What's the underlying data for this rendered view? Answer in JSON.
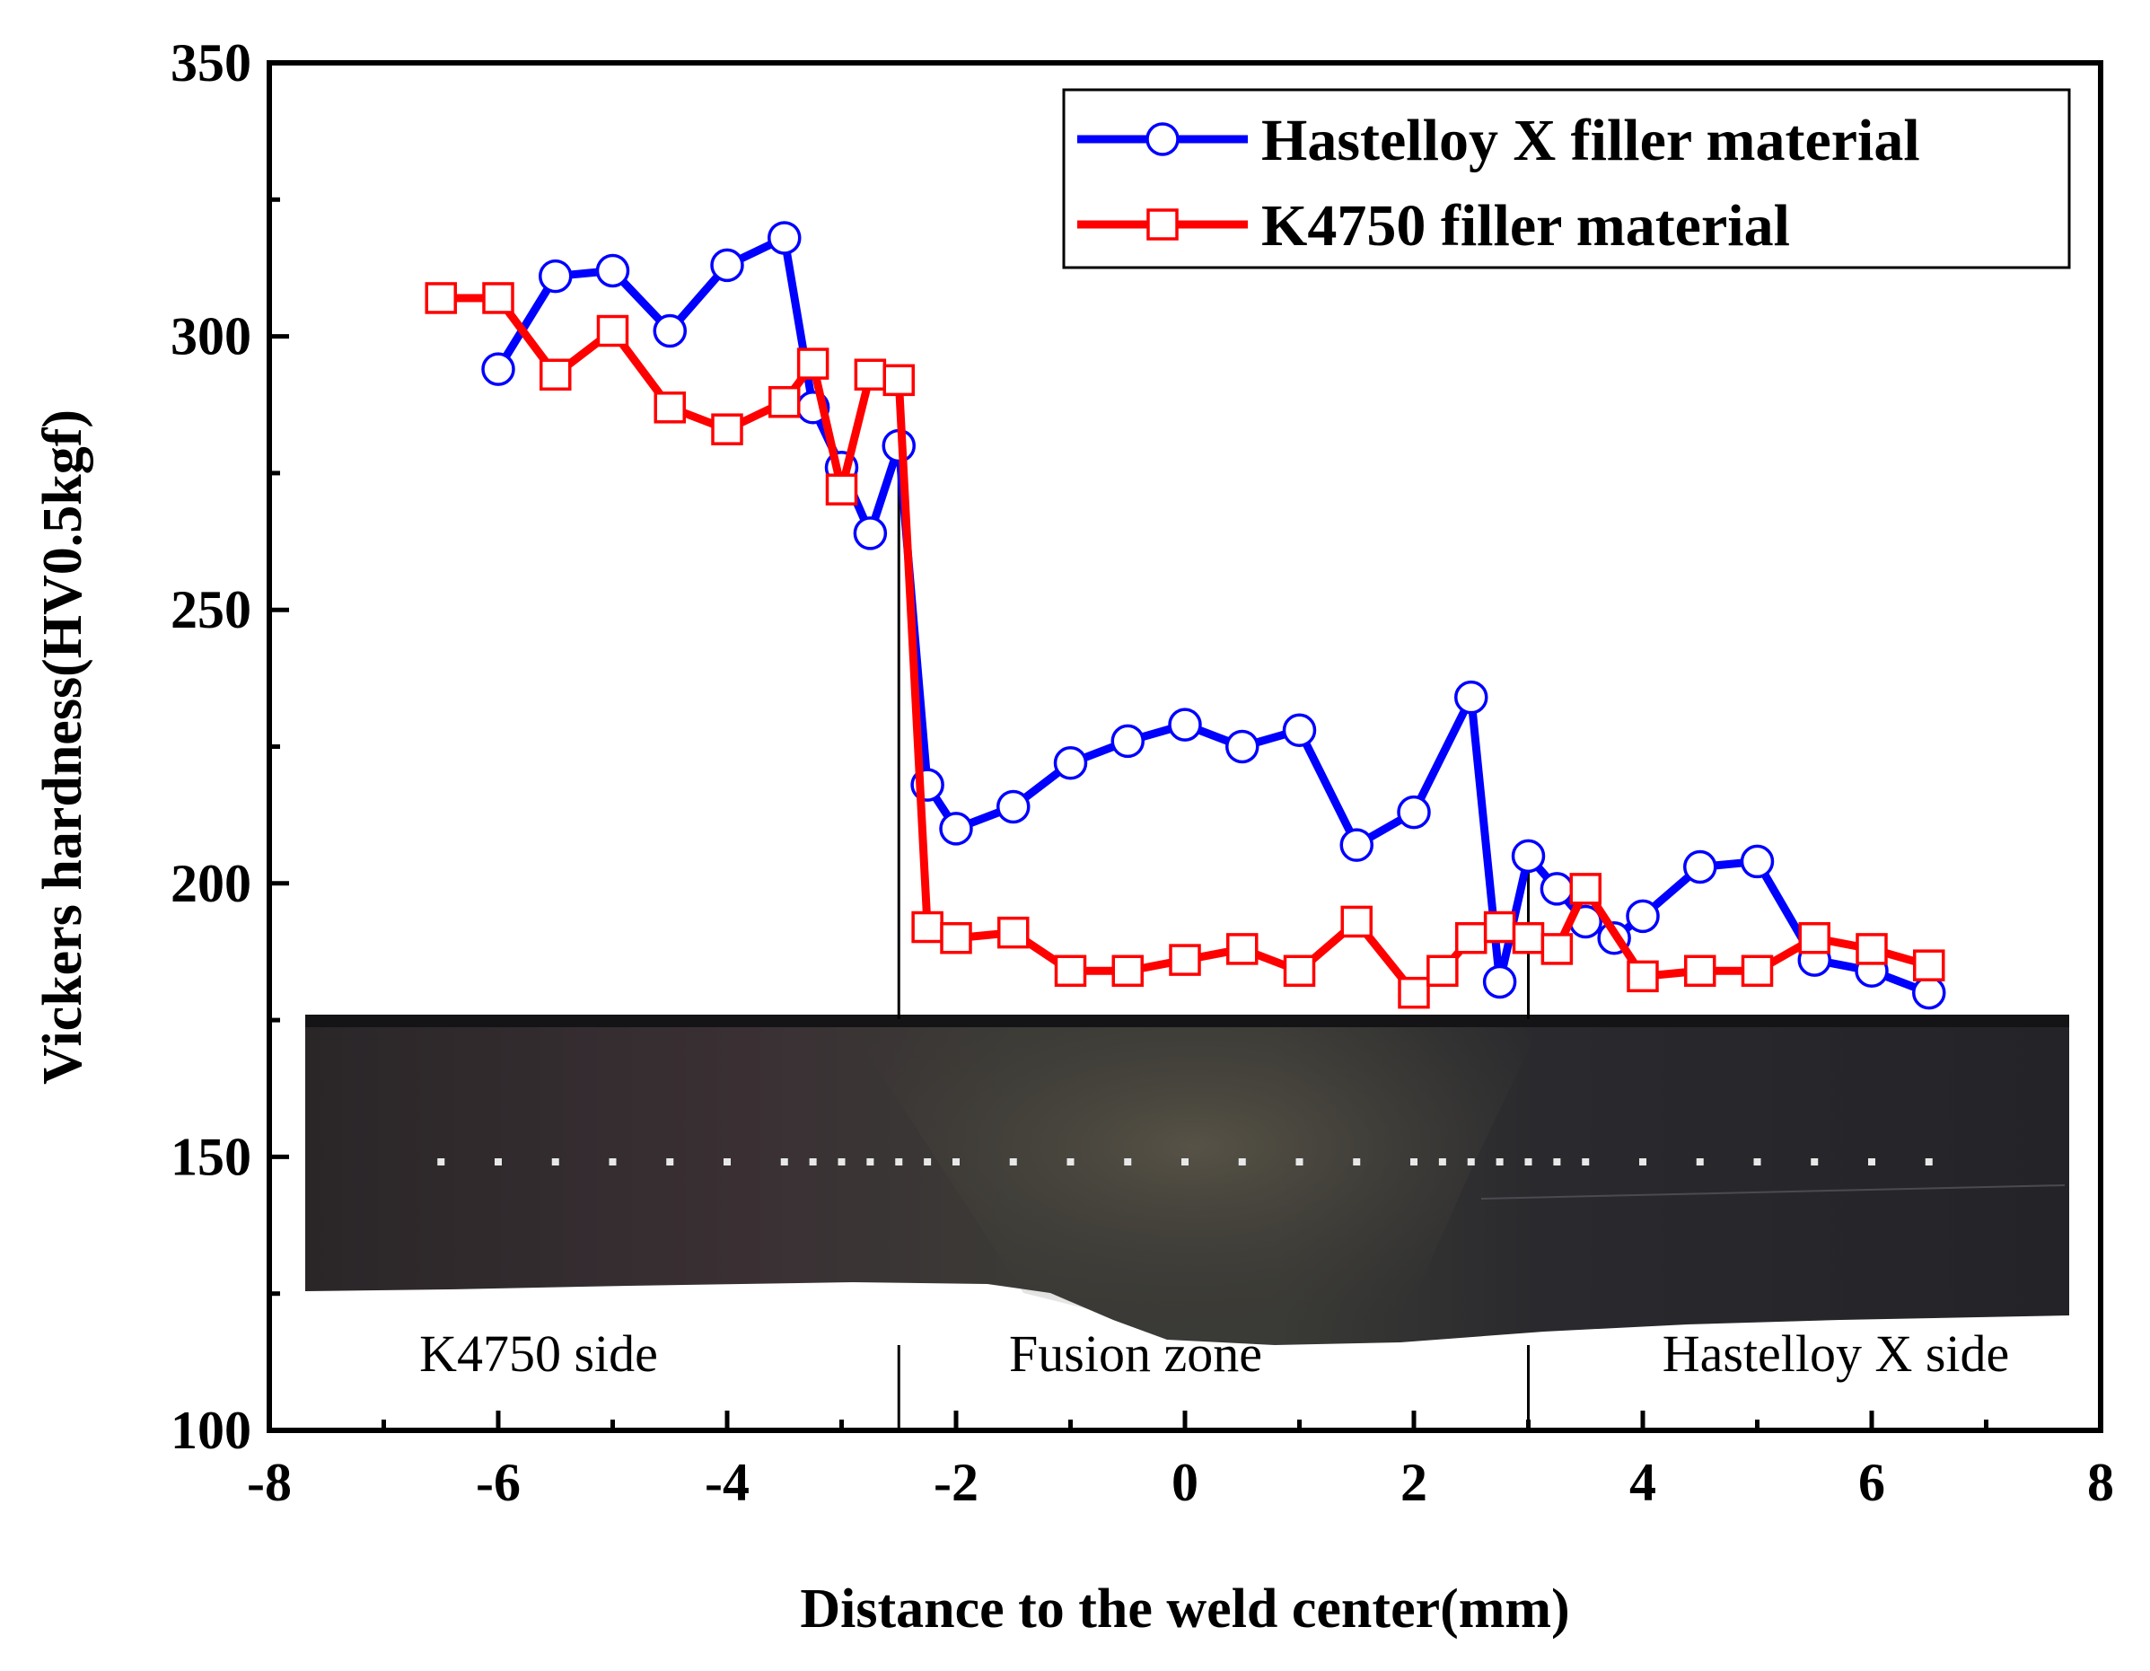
{
  "chart_data": {
    "type": "line",
    "title": "",
    "xlabel": "Distance to the weld center(mm)",
    "ylabel": "Vickers hardness(HV0.5kgf)",
    "xlim": [
      -8,
      8
    ],
    "ylim": [
      100,
      350
    ],
    "xticks": [
      -8,
      -6,
      -4,
      -2,
      0,
      2,
      4,
      6,
      8
    ],
    "yticks": [
      100,
      150,
      200,
      250,
      300,
      350
    ],
    "legend_position": "top-right",
    "series": [
      {
        "name": "Hastelloy X filler material",
        "color": "#0000ff",
        "marker": "circle",
        "x": [
          -6,
          -5.5,
          -5,
          -4.5,
          -4,
          -3.5,
          -3.25,
          -3,
          -2.75,
          -2.5,
          -2.25,
          -2,
          -1.5,
          -1,
          -0.5,
          0,
          0.5,
          1,
          1.5,
          2,
          2.5,
          2.75,
          3,
          3.25,
          3.5,
          3.75,
          4,
          4.5,
          5,
          5.5,
          6,
          6.5
        ],
        "values": [
          294,
          311,
          312,
          301,
          313,
          318,
          287,
          276,
          264,
          280,
          218,
          210,
          214,
          222,
          226,
          229,
          225,
          228,
          207,
          213,
          234,
          182,
          205,
          199,
          193,
          190,
          194,
          203,
          204,
          186,
          184,
          180
        ]
      },
      {
        "name": "K4750 filler material",
        "color": "#ff0000",
        "marker": "square",
        "x": [
          -6.5,
          -6,
          -5.5,
          -5,
          -4.5,
          -4,
          -3.5,
          -3.25,
          -3,
          -2.75,
          -2.5,
          -2.25,
          -2,
          -1.5,
          -1,
          -0.5,
          0,
          0.5,
          1,
          1.5,
          2,
          2.25,
          2.5,
          2.75,
          3,
          3.25,
          3.5,
          4,
          4.5,
          5,
          5.5,
          6,
          6.5
        ],
        "values": [
          307,
          307,
          293,
          301,
          287,
          283,
          288,
          295,
          272,
          293,
          292,
          192,
          190,
          191,
          184,
          184,
          186,
          188,
          184,
          193,
          180,
          184,
          190,
          192,
          190,
          188,
          199,
          183,
          184,
          184,
          190,
          188,
          185
        ]
      }
    ],
    "boundary_lines_x": [
      -2.5,
      3
    ],
    "inset_image": "weld cross-section micrograph with indentation points",
    "annotations": [
      "K4750 side",
      "Fusion zone",
      "Hastelloy X side"
    ]
  }
}
